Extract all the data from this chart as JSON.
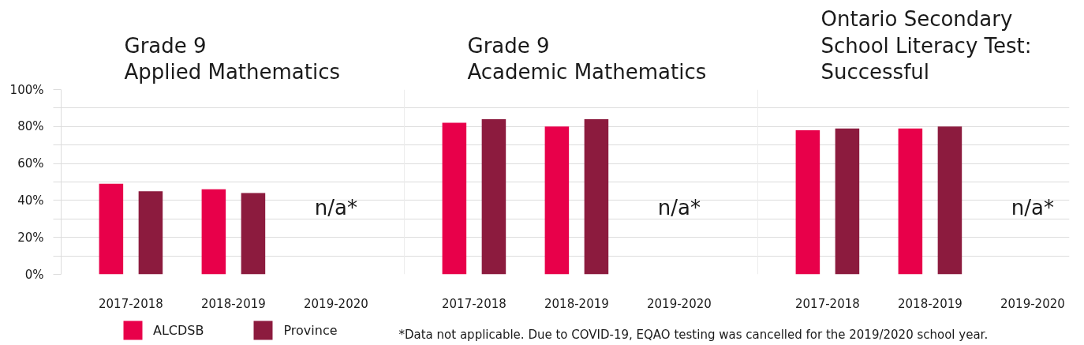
{
  "chart_data": [
    {
      "type": "bar",
      "title": "Grade 9\nApplied Mathematics",
      "categories": [
        "2017-2018",
        "2018-2019",
        "2019-2020"
      ],
      "series": [
        {
          "name": "ALCDSB",
          "color": "#e8004a",
          "values": [
            49,
            46,
            null
          ]
        },
        {
          "name": "Province",
          "color": "#8c1b3e",
          "values": [
            45,
            44,
            null
          ]
        }
      ],
      "ylim": [
        0,
        100
      ],
      "yticks": [
        {
          "value": 0,
          "label": "0%"
        },
        {
          "value": 10,
          "label": null
        },
        {
          "value": 20,
          "label": "20%"
        },
        {
          "value": 30,
          "label": null
        },
        {
          "value": 40,
          "label": "40%"
        },
        {
          "value": 50,
          "label": null
        },
        {
          "value": 60,
          "label": "60%"
        },
        {
          "value": 70,
          "label": null
        },
        {
          "value": 80,
          "label": "80%"
        },
        {
          "value": 90,
          "label": null
        },
        {
          "value": 100,
          "label": "100%"
        }
      ],
      "grid": "y",
      "legend": "bottom",
      "annotations": [
        "n/a*"
      ]
    },
    {
      "type": "bar",
      "title": "Grade 9\nAcademic Mathematics",
      "categories": [
        "2017-2018",
        "2018-2019",
        "2019-2020"
      ],
      "series": [
        {
          "color": "#e8004a",
          "values": [
            82,
            80,
            null
          ]
        },
        {
          "color": "#8c1b3e",
          "values": [
            84,
            84,
            null
          ]
        }
      ],
      "ylim": [
        0,
        100
      ],
      "yticks": [
        {
          "value": 0,
          "label": null
        },
        {
          "value": 10,
          "label": null
        },
        {
          "value": 20,
          "label": null
        },
        {
          "value": 30,
          "label": null
        },
        {
          "value": 40,
          "label": null
        },
        {
          "value": 50,
          "label": null
        },
        {
          "value": 60,
          "label": null
        },
        {
          "value": 70,
          "label": null
        },
        {
          "value": 80,
          "label": null
        },
        {
          "value": 90,
          "label": null
        },
        {
          "value": 100,
          "label": null
        }
      ],
      "grid": "y",
      "tick_labels": "x",
      "annotations": [
        "n/a*",
        "*Data not applicable. Due to COVID-19, EQAO testing was cancelled for the 2019/2020 school year."
      ]
    },
    {
      "type": "bar",
      "title": "Ontario Secondary\nSchool Literacy Test:\nSuccessful",
      "categories": [
        "2017-2018",
        "2018-2019",
        "2019-2020"
      ],
      "series": [
        {
          "color": "#e8004a",
          "values": [
            78,
            79,
            null
          ]
        },
        {
          "color": "#8c1b3e",
          "values": [
            79,
            80,
            null
          ]
        }
      ],
      "ylim": [
        0,
        100
      ],
      "yticks": [
        {
          "value": 0,
          "label": null
        },
        {
          "value": 10,
          "label": null
        },
        {
          "value": 20,
          "label": null
        },
        {
          "value": 30,
          "label": null
        },
        {
          "value": 40,
          "label": null
        },
        {
          "value": 50,
          "label": null
        },
        {
          "value": 60,
          "label": null
        },
        {
          "value": 70,
          "label": null
        },
        {
          "value": 80,
          "label": null
        },
        {
          "value": 90,
          "label": null
        },
        {
          "value": 100,
          "label": null
        }
      ],
      "grid": "y",
      "tick_labels": "x",
      "annotations": [
        "n/a*"
      ]
    }
  ]
}
